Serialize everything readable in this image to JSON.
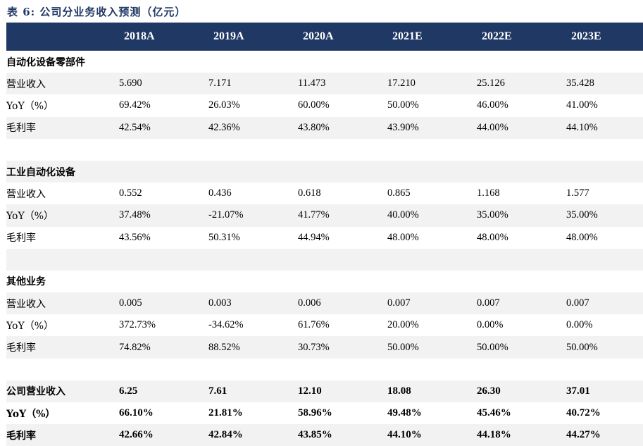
{
  "title": "表 6:  公司分业务收入预测（亿元）",
  "header": {
    "label": "",
    "years": [
      "2018A",
      "2019A",
      "2020A",
      "2021E",
      "2022E",
      "2023E"
    ]
  },
  "segments": [
    {
      "name": "自动化设备零部件",
      "rows": [
        {
          "label": "营业收入",
          "values": [
            "5.690",
            "7.171",
            "11.473",
            "17.210",
            "25.126",
            "35.428"
          ]
        },
        {
          "label": "YoY（%）",
          "values": [
            "69.42%",
            "26.03%",
            "60.00%",
            "50.00%",
            "46.00%",
            "41.00%"
          ]
        },
        {
          "label": "毛利率",
          "values": [
            "42.54%",
            "42.36%",
            "43.80%",
            "43.90%",
            "44.00%",
            "44.10%"
          ]
        }
      ]
    },
    {
      "name": "工业自动化设备",
      "rows": [
        {
          "label": "营业收入",
          "values": [
            "0.552",
            "0.436",
            "0.618",
            "0.865",
            "1.168",
            "1.577"
          ]
        },
        {
          "label": "YoY（%）",
          "values": [
            "37.48%",
            "-21.07%",
            "41.77%",
            "40.00%",
            "35.00%",
            "35.00%"
          ]
        },
        {
          "label": "毛利率",
          "values": [
            "43.56%",
            "50.31%",
            "44.94%",
            "48.00%",
            "48.00%",
            "48.00%"
          ]
        }
      ]
    },
    {
      "name": "其他业务",
      "rows": [
        {
          "label": "营业收入",
          "values": [
            "0.005",
            "0.003",
            "0.006",
            "0.007",
            "0.007",
            "0.007"
          ]
        },
        {
          "label": "YoY（%）",
          "values": [
            "372.73%",
            "-34.62%",
            "61.76%",
            "20.00%",
            "0.00%",
            "0.00%"
          ]
        },
        {
          "label": "毛利率",
          "values": [
            "74.82%",
            "88.52%",
            "30.73%",
            "50.00%",
            "50.00%",
            "50.00%"
          ]
        }
      ]
    }
  ],
  "totals": [
    {
      "label": "公司营业收入",
      "values": [
        "6.25",
        "7.61",
        "12.10",
        "18.08",
        "26.30",
        "37.01"
      ]
    },
    {
      "label": "YoY（%）",
      "values": [
        "66.10%",
        "21.81%",
        "58.96%",
        "49.48%",
        "45.46%",
        "40.72%"
      ]
    },
    {
      "label": "毛利率",
      "values": [
        "42.66%",
        "42.84%",
        "43.85%",
        "44.10%",
        "44.18%",
        "44.27%"
      ]
    }
  ],
  "colors": {
    "header_bg": "#1f3864",
    "header_text": "#ffffff",
    "shade": "#f2f2f2",
    "title": "#1f3864"
  }
}
